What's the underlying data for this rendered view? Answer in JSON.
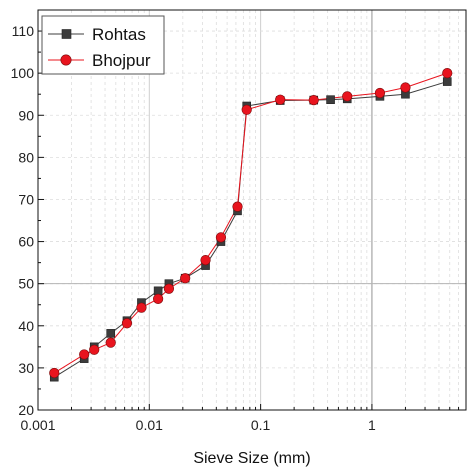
{
  "chart_data": {
    "type": "line",
    "xlabel": "Sieve Size (mm)",
    "ylabel": "",
    "x_scale": "log",
    "xlim": [
      0.001,
      7
    ],
    "ylim": [
      20,
      115
    ],
    "x_ticks": [
      0.001,
      0.01,
      0.1,
      1
    ],
    "x_tick_labels": [
      "0.001",
      "0.01",
      "0.1",
      "1"
    ],
    "y_ticks": [
      20,
      30,
      40,
      50,
      60,
      70,
      80,
      90,
      100,
      110
    ],
    "y_tick_labels": [
      "20",
      "30",
      "40",
      "50",
      "60",
      "70",
      "80",
      "90",
      "100",
      "110"
    ],
    "grid": true,
    "legend_position": "top-left",
    "series": [
      {
        "name": "Rohtas",
        "marker": "square",
        "color": "#3c3c3c",
        "x": [
          0.0014,
          0.0026,
          0.0032,
          0.0045,
          0.0063,
          0.0085,
          0.012,
          0.015,
          0.021,
          0.032,
          0.044,
          0.062,
          0.075,
          0.15,
          0.3,
          0.425,
          0.6,
          1.18,
          2.0,
          4.75
        ],
        "y": [
          27.8,
          32.2,
          35.0,
          38.2,
          41.2,
          45.5,
          48.3,
          50.0,
          51.3,
          54.3,
          60.0,
          67.3,
          92.2,
          93.5,
          93.6,
          93.7,
          93.9,
          94.5,
          95.0,
          98.0
        ]
      },
      {
        "name": "Bhojpur",
        "marker": "circle",
        "color": "#e8141e",
        "x": [
          0.0014,
          0.0026,
          0.0032,
          0.0045,
          0.0063,
          0.0085,
          0.012,
          0.015,
          0.021,
          0.032,
          0.044,
          0.062,
          0.075,
          0.15,
          0.3,
          0.6,
          1.18,
          2.0,
          4.75
        ],
        "y": [
          28.8,
          33.2,
          34.3,
          36.0,
          40.6,
          44.3,
          46.4,
          48.8,
          51.3,
          55.6,
          61.0,
          68.3,
          91.3,
          93.7,
          93.6,
          94.5,
          95.3,
          96.6,
          100.0
        ]
      }
    ]
  }
}
